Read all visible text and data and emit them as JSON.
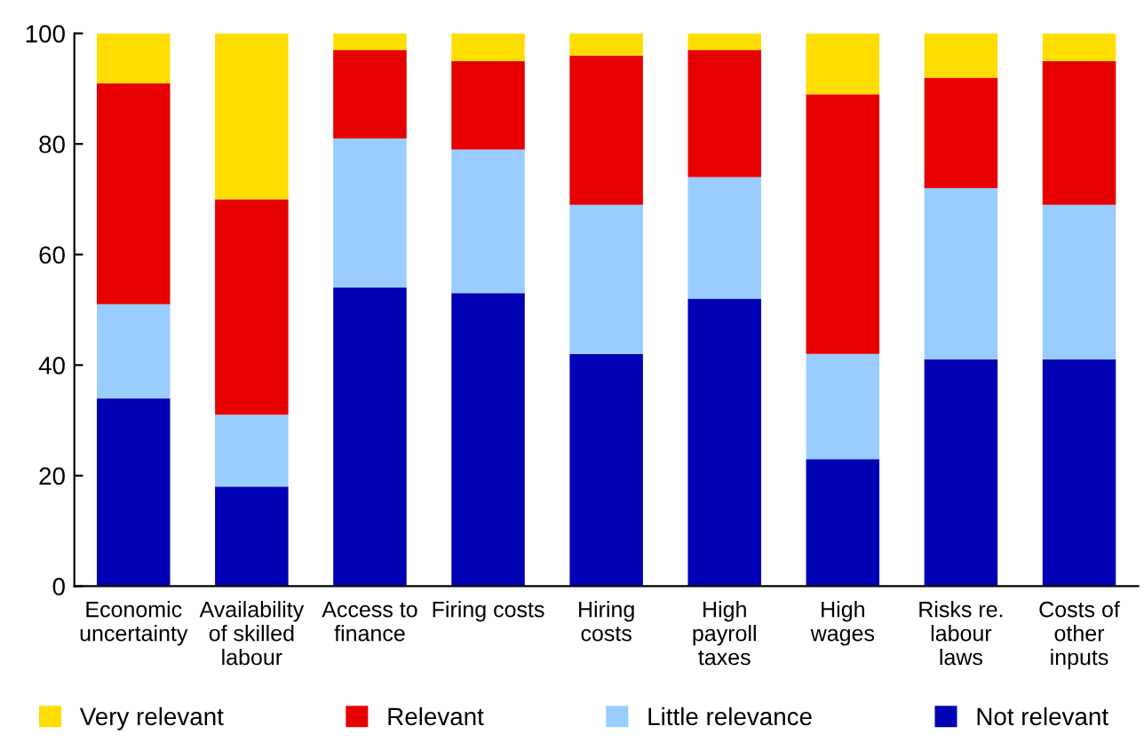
{
  "chart_data": {
    "type": "bar",
    "stacked": true,
    "categories": [
      "Economic\nuncertainty",
      "Availability\nof skilled\nlabour",
      "Access to\nfinance",
      "Firing costs",
      "Hiring\ncosts",
      "High\npayroll\ntaxes",
      "High\nwages",
      "Risks re.\nlabour\nlaws",
      "Costs of\nother\ninputs"
    ],
    "series": [
      {
        "name": "Not relevant",
        "color": "#0000b4",
        "values": [
          34,
          18,
          54,
          53,
          42,
          52,
          23,
          41,
          41
        ]
      },
      {
        "name": "Little relevance",
        "color": "#99ccff",
        "values": [
          17,
          13,
          27,
          26,
          27,
          22,
          19,
          31,
          28
        ]
      },
      {
        "name": "Relevant",
        "color": "#e60000",
        "values": [
          40,
          39,
          16,
          16,
          27,
          23,
          47,
          20,
          26
        ]
      },
      {
        "name": "Very relevant",
        "color": "#ffdd00",
        "values": [
          9,
          30,
          3,
          5,
          4,
          3,
          11,
          8,
          5
        ]
      }
    ],
    "ylim": [
      0,
      100
    ],
    "yticks": [
      0,
      20,
      40,
      60,
      80,
      100
    ],
    "grid": false,
    "legend": "bottom"
  }
}
